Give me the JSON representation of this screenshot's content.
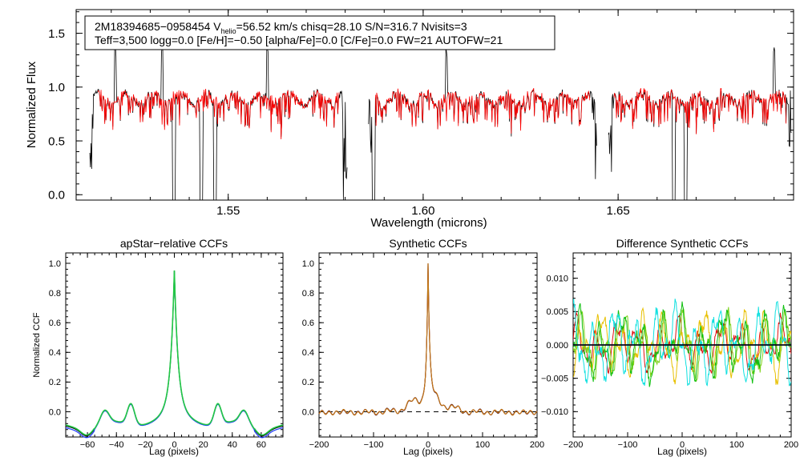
{
  "header": {
    "line1_prefix": "2M18394685−0958454  V",
    "line1_sub": "helio",
    "line1_suffix": "=56.52 km/s  chisq=28.10  S/N=316.7  Nvisits=3",
    "line2": "Teff=3,500 logg=0.0 [Fe/H]=−0.50 [alpha/Fe]=0.0 [C/Fe]=0.0 FW=21 AUTOFW=21"
  },
  "colors": {
    "observed": "#000000",
    "model": "#ff0000"
  },
  "chart_data": [
    {
      "id": "spectrum",
      "type": "line",
      "title": "",
      "xlabel": "Wavelength (microns)",
      "ylabel": "Normalized Flux",
      "xlim": [
        1.511,
        1.695
      ],
      "ylim": [
        -0.05,
        1.72
      ],
      "xticks": [
        1.55,
        1.6,
        1.65
      ],
      "xtick_labels": [
        "1.55",
        "1.60",
        "1.65"
      ],
      "yticks": [
        0.0,
        0.5,
        1.0,
        1.5
      ],
      "ytick_labels": [
        "0.0",
        "0.5",
        "1.0",
        "1.5"
      ],
      "chips": [
        [
          1.5145,
          1.5805
        ],
        [
          1.586,
          1.6445
        ],
        [
          1.6475,
          1.6945
        ]
      ],
      "deep_lines": [
        1.536,
        1.5431,
        1.5467,
        1.5799,
        1.5872,
        1.6643,
        1.6673
      ],
      "spikes": [
        1.521,
        1.533,
        1.56,
        1.606,
        1.648,
        1.69
      ],
      "series": [
        {
          "name": "observed spectrum",
          "color": "#000000"
        },
        {
          "name": "best-fit model",
          "color": "#ff0000"
        }
      ]
    },
    {
      "id": "apstar-ccf",
      "type": "line",
      "title": "apStar−relative CCFs",
      "xlabel": "Lag (pixels)",
      "ylabel": "Normalized CCF",
      "xlim": [
        -75,
        75
      ],
      "ylim": [
        -0.17,
        1.07
      ],
      "xticks": [
        -60,
        -40,
        -20,
        0,
        20,
        40,
        60
      ],
      "xtick_labels": [
        "−60",
        "−40",
        "−20",
        "0",
        "20",
        "40",
        "60"
      ],
      "yticks": [
        0.0,
        0.2,
        0.4,
        0.6,
        0.8,
        1.0
      ],
      "ytick_labels": [
        "0.0",
        "0.2",
        "0.4",
        "0.6",
        "0.8",
        "1.0"
      ],
      "series": [
        {
          "name": "visit 1",
          "color": "#000000"
        },
        {
          "name": "visit 2",
          "color": "#1f3fff"
        },
        {
          "name": "visit 3",
          "color": "#22c844"
        }
      ]
    },
    {
      "id": "synthetic-ccf",
      "type": "line",
      "title": "Synthetic CCFs",
      "xlabel": "Lag (pixels)",
      "ylabel": "",
      "xlim": [
        -200,
        200
      ],
      "ylim": [
        -0.17,
        1.07
      ],
      "xticks": [
        -200,
        -100,
        0,
        100,
        200
      ],
      "xtick_labels": [
        "−200",
        "−100",
        "0",
        "100",
        "200"
      ],
      "yticks": [
        0.0,
        0.2,
        0.4,
        0.6,
        0.8,
        1.0
      ],
      "ytick_labels": [
        "0.0",
        "0.2",
        "0.4",
        "0.6",
        "0.8",
        "1.0"
      ],
      "zero_line": 0.0,
      "series": [
        {
          "name": "visit 1",
          "color": "#000000"
        },
        {
          "name": "visit 2",
          "color": "#c02020"
        },
        {
          "name": "visit 3",
          "color": "#c07a18"
        }
      ]
    },
    {
      "id": "difference-ccf",
      "type": "line",
      "title": "Difference Synthetic CCFs",
      "xlabel": "Lag (pixels)",
      "ylabel": "",
      "xlim": [
        -200,
        200
      ],
      "ylim": [
        -0.0138,
        0.0138
      ],
      "xticks": [
        -200,
        -100,
        0,
        100,
        200
      ],
      "xtick_labels": [
        "−200",
        "−100",
        "0",
        "100",
        "200"
      ],
      "yticks": [
        -0.01,
        -0.005,
        0.0,
        0.005,
        0.01
      ],
      "ytick_labels": [
        "−0.010",
        "−0.005",
        "0.000",
        "0.005",
        "0.010"
      ],
      "zero_line": 0.0,
      "series": [
        {
          "name": "red",
          "color": "#e01010"
        },
        {
          "name": "yellow",
          "color": "#e8c000"
        },
        {
          "name": "light green",
          "color": "#7ed21a"
        },
        {
          "name": "green",
          "color": "#10c010"
        },
        {
          "name": "cyan",
          "color": "#10e0e0"
        },
        {
          "name": "blue",
          "color": "#1030c0"
        }
      ]
    }
  ]
}
